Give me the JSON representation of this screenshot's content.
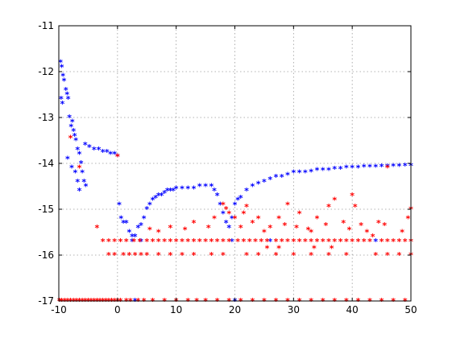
{
  "chart_data": {
    "type": "scatter",
    "xlim": [
      -10,
      50
    ],
    "ylim": [
      -17,
      -11
    ],
    "xticks": [
      -10,
      0,
      10,
      20,
      30,
      40,
      50
    ],
    "yticks": [
      -11,
      -12,
      -13,
      -14,
      -15,
      -16,
      -17
    ],
    "grid": true,
    "marker": "*",
    "series": [
      {
        "color": "#0000ff",
        "points": [
          [
            -9.7,
            -11.8
          ],
          [
            -9.5,
            -11.9
          ],
          [
            -9.3,
            -12.1
          ],
          [
            -9.1,
            -12.2
          ],
          [
            -9.6,
            -12.6
          ],
          [
            -9.4,
            -12.7
          ],
          [
            -8.8,
            -12.4
          ],
          [
            -8.6,
            -12.5
          ],
          [
            -8.4,
            -12.6
          ],
          [
            -8.2,
            -13.0
          ],
          [
            -7.9,
            -13.2
          ],
          [
            -7.7,
            -13.1
          ],
          [
            -7.5,
            -13.3
          ],
          [
            -7.3,
            -13.4
          ],
          [
            -7.1,
            -13.5
          ],
          [
            -6.8,
            -13.7
          ],
          [
            -6.5,
            -13.8
          ],
          [
            -6.2,
            -14.0
          ],
          [
            -6.0,
            -14.2
          ],
          [
            -5.7,
            -14.4
          ],
          [
            -5.4,
            -14.5
          ],
          [
            -8.5,
            -13.9
          ],
          [
            -7.8,
            -14.1
          ],
          [
            -7.2,
            -14.2
          ],
          [
            -6.8,
            -14.4
          ],
          [
            -6.5,
            -14.6
          ],
          [
            -5.5,
            -13.6
          ],
          [
            -4.8,
            -13.65
          ],
          [
            -4.0,
            -13.7
          ],
          [
            -3.2,
            -13.7
          ],
          [
            -2.5,
            -13.75
          ],
          [
            -1.8,
            -13.75
          ],
          [
            -1.2,
            -13.8
          ],
          [
            -0.5,
            -13.8
          ],
          [
            0.0,
            -13.85
          ],
          [
            0.3,
            -14.9
          ],
          [
            0.6,
            -15.2
          ],
          [
            1.0,
            -15.3
          ],
          [
            1.5,
            -15.3
          ],
          [
            2.0,
            -15.5
          ],
          [
            2.5,
            -15.6
          ],
          [
            3.0,
            -15.6
          ],
          [
            3.5,
            -15.4
          ],
          [
            4.0,
            -15.35
          ],
          [
            4.5,
            -15.2
          ],
          [
            5.0,
            -15.0
          ],
          [
            5.5,
            -14.9
          ],
          [
            6.0,
            -14.8
          ],
          [
            6.5,
            -14.75
          ],
          [
            7.0,
            -14.7
          ],
          [
            7.5,
            -14.7
          ],
          [
            8.0,
            -14.65
          ],
          [
            8.5,
            -14.6
          ],
          [
            9.0,
            -14.6
          ],
          [
            9.5,
            -14.6
          ],
          [
            10.0,
            -14.55
          ],
          [
            11.0,
            -14.55
          ],
          [
            12.0,
            -14.55
          ],
          [
            13.0,
            -14.55
          ],
          [
            14.0,
            -14.5
          ],
          [
            15.0,
            -14.5
          ],
          [
            16.0,
            -14.5
          ],
          [
            16.5,
            -14.6
          ],
          [
            17.0,
            -14.7
          ],
          [
            17.5,
            -14.9
          ],
          [
            18.0,
            -15.1
          ],
          [
            18.5,
            -15.3
          ],
          [
            19.0,
            -15.4
          ],
          [
            19.5,
            -15.2
          ],
          [
            20.0,
            -14.9
          ],
          [
            20.5,
            -14.8
          ],
          [
            21.0,
            -14.75
          ],
          [
            22.0,
            -14.6
          ],
          [
            23.0,
            -14.5
          ],
          [
            24.0,
            -14.45
          ],
          [
            25.0,
            -14.4
          ],
          [
            26.0,
            -14.35
          ],
          [
            27.0,
            -14.3
          ],
          [
            28.0,
            -14.3
          ],
          [
            29.0,
            -14.25
          ],
          [
            30.0,
            -14.2
          ],
          [
            31.0,
            -14.2
          ],
          [
            32.0,
            -14.2
          ],
          [
            33.0,
            -14.18
          ],
          [
            34.0,
            -14.15
          ],
          [
            35.0,
            -14.15
          ],
          [
            36.0,
            -14.15
          ],
          [
            37.0,
            -14.12
          ],
          [
            38.0,
            -14.12
          ],
          [
            39.0,
            -14.1
          ],
          [
            40.0,
            -14.1
          ],
          [
            41.0,
            -14.1
          ],
          [
            42.0,
            -14.08
          ],
          [
            43.0,
            -14.08
          ],
          [
            44.0,
            -14.08
          ],
          [
            45.0,
            -14.07
          ],
          [
            46.0,
            -14.07
          ],
          [
            47.0,
            -14.06
          ],
          [
            48.0,
            -14.06
          ],
          [
            49.0,
            -14.05
          ],
          [
            50.0,
            -14.05
          ],
          [
            2.5,
            -15.7
          ],
          [
            4.0,
            -15.7
          ],
          [
            19.5,
            -15.7
          ],
          [
            44.0,
            -15.7
          ],
          [
            26.0,
            -15.7
          ],
          [
            3.0,
            -17.0
          ],
          [
            20.0,
            -17.0
          ]
        ]
      },
      {
        "color": "#ff0000",
        "points": [
          [
            -9.9,
            -17.0
          ],
          [
            -9.5,
            -17.0
          ],
          [
            -9.0,
            -17.0
          ],
          [
            -8.5,
            -17.0
          ],
          [
            -8.0,
            -17.0
          ],
          [
            -7.5,
            -17.0
          ],
          [
            -7.0,
            -17.0
          ],
          [
            -6.5,
            -17.0
          ],
          [
            -6.0,
            -17.0
          ],
          [
            -5.5,
            -17.0
          ],
          [
            -5.0,
            -17.0
          ],
          [
            -4.5,
            -17.0
          ],
          [
            -4.0,
            -17.0
          ],
          [
            -3.5,
            -17.0
          ],
          [
            -3.0,
            -17.0
          ],
          [
            -2.5,
            -17.0
          ],
          [
            -2.0,
            -17.0
          ],
          [
            -1.5,
            -17.0
          ],
          [
            -1.0,
            -17.0
          ],
          [
            -0.5,
            -17.0
          ],
          [
            0.0,
            -17.0
          ],
          [
            0.5,
            -17.0
          ],
          [
            1.5,
            -17.0
          ],
          [
            2.2,
            -17.0
          ],
          [
            3.5,
            -17.0
          ],
          [
            4.5,
            -17.0
          ],
          [
            6.0,
            -17.0
          ],
          [
            8.0,
            -17.0
          ],
          [
            10.0,
            -17.0
          ],
          [
            12.0,
            -17.0
          ],
          [
            13.5,
            -17.0
          ],
          [
            15.0,
            -17.0
          ],
          [
            17.0,
            -17.0
          ],
          [
            19.0,
            -17.0
          ],
          [
            21.0,
            -17.0
          ],
          [
            23.0,
            -17.0
          ],
          [
            25.0,
            -17.0
          ],
          [
            27.0,
            -17.0
          ],
          [
            29.0,
            -17.0
          ],
          [
            31.0,
            -17.0
          ],
          [
            33.0,
            -17.0
          ],
          [
            35.0,
            -17.0
          ],
          [
            37.0,
            -17.0
          ],
          [
            39.0,
            -17.0
          ],
          [
            41.0,
            -17.0
          ],
          [
            43.0,
            -17.0
          ],
          [
            45.0,
            -17.0
          ],
          [
            47.0,
            -17.0
          ],
          [
            49.0,
            -17.0
          ],
          [
            -8.0,
            -13.45
          ],
          [
            -6.5,
            -14.1
          ],
          [
            0.0,
            -13.85
          ],
          [
            -3.5,
            -15.4
          ],
          [
            -2.5,
            -15.7
          ],
          [
            -1.5,
            -15.7
          ],
          [
            -0.5,
            -15.7
          ],
          [
            0.5,
            -15.7
          ],
          [
            1.5,
            -15.7
          ],
          [
            2.8,
            -15.7
          ],
          [
            3.8,
            -15.7
          ],
          [
            5.0,
            -15.7
          ],
          [
            6.0,
            -15.7
          ],
          [
            7.0,
            -15.7
          ],
          [
            8.0,
            -15.7
          ],
          [
            9.0,
            -15.7
          ],
          [
            10.0,
            -15.7
          ],
          [
            11.0,
            -15.7
          ],
          [
            12.0,
            -15.7
          ],
          [
            13.0,
            -15.7
          ],
          [
            14.0,
            -15.7
          ],
          [
            15.0,
            -15.7
          ],
          [
            16.0,
            -15.7
          ],
          [
            17.0,
            -15.7
          ],
          [
            18.0,
            -15.7
          ],
          [
            19.0,
            -15.7
          ],
          [
            20.5,
            -15.7
          ],
          [
            21.5,
            -15.7
          ],
          [
            22.5,
            -15.7
          ],
          [
            23.5,
            -15.7
          ],
          [
            24.5,
            -15.7
          ],
          [
            25.5,
            -15.7
          ],
          [
            27.0,
            -15.7
          ],
          [
            28.0,
            -15.7
          ],
          [
            29.0,
            -15.7
          ],
          [
            30.0,
            -15.7
          ],
          [
            31.0,
            -15.7
          ],
          [
            32.0,
            -15.7
          ],
          [
            33.0,
            -15.7
          ],
          [
            34.0,
            -15.7
          ],
          [
            35.0,
            -15.7
          ],
          [
            36.0,
            -15.7
          ],
          [
            37.0,
            -15.7
          ],
          [
            38.0,
            -15.7
          ],
          [
            39.0,
            -15.7
          ],
          [
            40.0,
            -15.7
          ],
          [
            41.0,
            -15.7
          ],
          [
            42.0,
            -15.7
          ],
          [
            43.0,
            -15.7
          ],
          [
            45.0,
            -15.7
          ],
          [
            46.0,
            -15.7
          ],
          [
            47.0,
            -15.7
          ],
          [
            48.0,
            -15.7
          ],
          [
            49.0,
            -15.7
          ],
          [
            50.0,
            -15.7
          ],
          [
            -1.5,
            -16.0
          ],
          [
            -0.5,
            -16.0
          ],
          [
            1.0,
            -16.0
          ],
          [
            2.0,
            -16.0
          ],
          [
            3.0,
            -16.0
          ],
          [
            4.0,
            -16.0
          ],
          [
            5.0,
            -16.0
          ],
          [
            7.0,
            -16.0
          ],
          [
            9.0,
            -16.0
          ],
          [
            11.0,
            -16.0
          ],
          [
            13.0,
            -16.0
          ],
          [
            16.0,
            -16.0
          ],
          [
            18.0,
            -16.0
          ],
          [
            22.0,
            -16.0
          ],
          [
            24.0,
            -16.0
          ],
          [
            27.0,
            -16.0
          ],
          [
            30.0,
            -16.0
          ],
          [
            33.0,
            -16.0
          ],
          [
            36.0,
            -16.0
          ],
          [
            39.0,
            -16.0
          ],
          [
            44.0,
            -16.0
          ],
          [
            46.0,
            -16.0
          ],
          [
            48.0,
            -16.0
          ],
          [
            50.0,
            -16.0
          ],
          [
            5.5,
            -15.45
          ],
          [
            7.0,
            -15.5
          ],
          [
            9.0,
            -15.4
          ],
          [
            11.5,
            -15.45
          ],
          [
            13.0,
            -15.3
          ],
          [
            15.5,
            -15.4
          ],
          [
            16.5,
            -15.2
          ],
          [
            18.0,
            -14.9
          ],
          [
            18.5,
            -15.0
          ],
          [
            19.0,
            -15.1
          ],
          [
            20.0,
            -15.2
          ],
          [
            21.0,
            -15.4
          ],
          [
            21.5,
            -15.1
          ],
          [
            22.0,
            -14.95
          ],
          [
            23.0,
            -15.3
          ],
          [
            24.0,
            -15.2
          ],
          [
            25.0,
            -15.5
          ],
          [
            26.0,
            -15.4
          ],
          [
            27.5,
            -15.2
          ],
          [
            28.5,
            -15.35
          ],
          [
            29.0,
            -14.9
          ],
          [
            30.5,
            -15.4
          ],
          [
            31.0,
            -15.1
          ],
          [
            32.5,
            -15.45
          ],
          [
            33.0,
            -15.5
          ],
          [
            34.0,
            -15.2
          ],
          [
            35.5,
            -15.35
          ],
          [
            36.0,
            -14.95
          ],
          [
            37.0,
            -14.8
          ],
          [
            38.5,
            -15.3
          ],
          [
            39.5,
            -15.45
          ],
          [
            40.5,
            -14.95
          ],
          [
            41.5,
            -15.35
          ],
          [
            42.5,
            -15.5
          ],
          [
            43.5,
            -15.6
          ],
          [
            44.5,
            -15.3
          ],
          [
            45.5,
            -15.35
          ],
          [
            46.0,
            -14.1
          ],
          [
            48.5,
            -15.5
          ],
          [
            49.5,
            -15.2
          ],
          [
            50.0,
            -15.0
          ],
          [
            25.5,
            -15.85
          ],
          [
            27.5,
            -15.85
          ],
          [
            33.5,
            -15.85
          ],
          [
            36.5,
            -15.85
          ],
          [
            40.0,
            -14.7
          ]
        ]
      }
    ]
  }
}
